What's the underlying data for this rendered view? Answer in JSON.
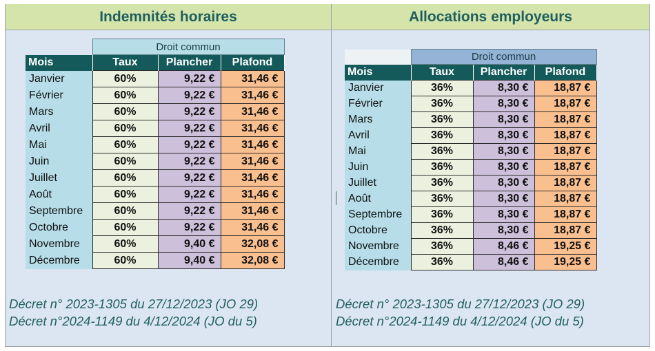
{
  "left_panel": {
    "title": "Indemnités horaires",
    "group_header": "Droit commun",
    "columns": [
      "Mois",
      "Taux",
      "Plancher",
      "Plafond"
    ],
    "rows": [
      {
        "mois": "Janvier",
        "taux": "60%",
        "plancher": "9,22 €",
        "plafond": "31,46 €"
      },
      {
        "mois": "Février",
        "taux": "60%",
        "plancher": "9,22 €",
        "plafond": "31,46 €"
      },
      {
        "mois": "Mars",
        "taux": "60%",
        "plancher": "9,22 €",
        "plafond": "31,46 €"
      },
      {
        "mois": "Avril",
        "taux": "60%",
        "plancher": "9,22 €",
        "plafond": "31,46 €"
      },
      {
        "mois": "Mai",
        "taux": "60%",
        "plancher": "9,22 €",
        "plafond": "31,46 €"
      },
      {
        "mois": "Juin",
        "taux": "60%",
        "plancher": "9,22 €",
        "plafond": "31,46 €"
      },
      {
        "mois": "Juillet",
        "taux": "60%",
        "plancher": "9,22 €",
        "plafond": "31,46 €"
      },
      {
        "mois": "Août",
        "taux": "60%",
        "plancher": "9,22 €",
        "plafond": "31,46 €"
      },
      {
        "mois": "Septembre",
        "taux": "60%",
        "plancher": "9,22 €",
        "plafond": "31,46 €"
      },
      {
        "mois": "Octobre",
        "taux": "60%",
        "plancher": "9,22 €",
        "plafond": "31,46 €"
      },
      {
        "mois": "Novembre",
        "taux": "60%",
        "plancher": "9,40 €",
        "plafond": "32,08 €"
      },
      {
        "mois": "Décembre",
        "taux": "60%",
        "plancher": "9,40 €",
        "plafond": "32,08 €"
      }
    ],
    "decrees": [
      "Décret n° 2023-1305 du 27/12/2023 (JO 29)",
      "Décret n°2024-1149 du 4/12/2024 (JO du 5)"
    ]
  },
  "right_panel": {
    "title": "Allocations employeurs",
    "group_header": "Droit commun",
    "columns": [
      "Mois",
      "Taux",
      "Plancher",
      "Plafond"
    ],
    "rows": [
      {
        "mois": "Janvier",
        "taux": "36%",
        "plancher": "8,30 €",
        "plafond": "18,87 €"
      },
      {
        "mois": "Février",
        "taux": "36%",
        "plancher": "8,30 €",
        "plafond": "18,87 €"
      },
      {
        "mois": "Mars",
        "taux": "36%",
        "plancher": "8,30 €",
        "plafond": "18,87 €"
      },
      {
        "mois": "Avril",
        "taux": "36%",
        "plancher": "8,30 €",
        "plafond": "18,87 €"
      },
      {
        "mois": "Mai",
        "taux": "36%",
        "plancher": "8,30 €",
        "plafond": "18,87 €"
      },
      {
        "mois": "Juin",
        "taux": "36%",
        "plancher": "8,30 €",
        "plafond": "18,87 €"
      },
      {
        "mois": "Juillet",
        "taux": "36%",
        "plancher": "8,30 €",
        "plafond": "18,87 €"
      },
      {
        "mois": "Août",
        "taux": "36%",
        "plancher": "8,30 €",
        "plafond": "18,87 €"
      },
      {
        "mois": "Septembre",
        "taux": "36%",
        "plancher": "8,30 €",
        "plafond": "18,87 €"
      },
      {
        "mois": "Octobre",
        "taux": "36%",
        "plancher": "8,30 €",
        "plafond": "18,87 €"
      },
      {
        "mois": "Novembre",
        "taux": "36%",
        "plancher": "8,46 €",
        "plafond": "19,25 €"
      },
      {
        "mois": "Décembre",
        "taux": "36%",
        "plancher": "8,46 €",
        "plafond": "19,25 €"
      }
    ],
    "decrees": [
      "Décret n° 2023-1305 du 27/12/2023 (JO 29)",
      "Décret n°2024-1149 du 4/12/2024 (JO du 5)"
    ]
  },
  "colors": {
    "header_band": "#d4e4aa",
    "title_text": "#1f5f5f",
    "column_header": "#155a5a",
    "month_cell": "#b7dde8",
    "taux_cell": "#ebf1de",
    "plancher_cell": "#ccc0da",
    "plafond_cell": "#fabf8f",
    "panel_background": "#dce6f2"
  }
}
